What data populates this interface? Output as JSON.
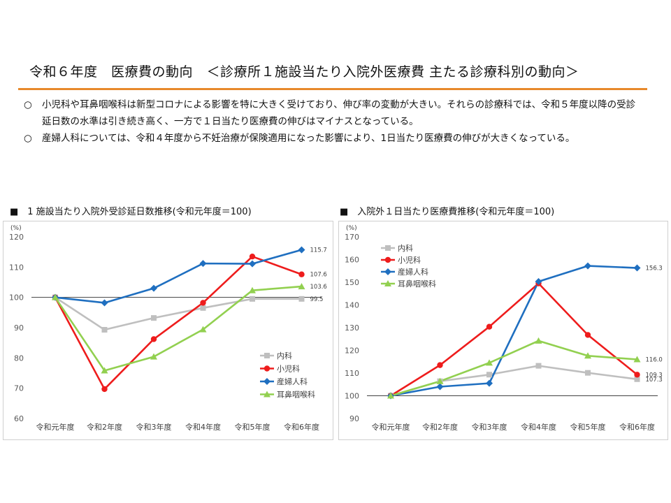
{
  "header": {
    "title": "令和６年度　医療費の動向　＜診療所１施設当たり入院外医療費 主たる診療科別の動向＞"
  },
  "bullets": [
    {
      "mark": "○",
      "text": "小児科や耳鼻咽喉科は新型コロナによる影響を特に大きく受けており、伸び率の変動が大きい。それらの診療科では、令和５年度以降の受診延日数の水準は引き続き高く、一方で１日当たり医療費の伸びはマイナスとなっている。"
    },
    {
      "mark": "○",
      "text": "産婦人科については、令和４年度から不妊治療が保険適用になった影響により、1日当たり医療費の伸びが大きくなっている。"
    }
  ],
  "chart_headings": [
    "■　1 施設当たり入院外受診延日数推移(令和元年度＝100)",
    "■　入院外１日当たり医療費推移(令和元年度＝100)"
  ],
  "chart_data": [
    {
      "type": "line",
      "unit_label": "(%)",
      "categories": [
        "令和元年度",
        "令和2年度",
        "令和3年度",
        "令和4年度",
        "令和5年度",
        "令和6年度"
      ],
      "ylim": [
        60,
        120
      ],
      "yticks": [
        60,
        70,
        80,
        90,
        100,
        110,
        120
      ],
      "reference_line": 100,
      "grid": false,
      "legend_position": "bottom-right",
      "series": [
        {
          "name": "内科",
          "color": "#bfbfbf",
          "marker": "square",
          "values": [
            100,
            89.3,
            93.2,
            96.5,
            99.5,
            99.5
          ],
          "end_label": "99.5"
        },
        {
          "name": "小児科",
          "color": "#ee1c1c",
          "marker": "circle",
          "values": [
            100,
            69.7,
            86.2,
            98.2,
            113.5,
            107.6
          ],
          "end_label": "107.6"
        },
        {
          "name": "産婦人科",
          "color": "#1f6fc0",
          "marker": "diamond",
          "values": [
            100,
            98.2,
            103,
            111.2,
            111.1,
            115.7
          ],
          "end_label": "115.7"
        },
        {
          "name": "耳鼻咽喉科",
          "color": "#92d050",
          "marker": "triangle",
          "values": [
            100,
            75.8,
            80.4,
            89.4,
            102.3,
            103.6
          ],
          "end_label": "103.6"
        }
      ]
    },
    {
      "type": "line",
      "unit_label": "(%)",
      "categories": [
        "令和元年度",
        "令和2年度",
        "令和3年度",
        "令和4年度",
        "令和5年度",
        "令和6年度"
      ],
      "ylim": [
        90,
        170
      ],
      "yticks": [
        90,
        100,
        110,
        120,
        130,
        140,
        150,
        160,
        170
      ],
      "reference_line": 100,
      "grid": false,
      "legend_position": "top-left",
      "series": [
        {
          "name": "内科",
          "color": "#bfbfbf",
          "marker": "square",
          "values": [
            100,
            106.4,
            109.3,
            113.2,
            110.1,
            107.3
          ],
          "end_label": "107.3"
        },
        {
          "name": "小児科",
          "color": "#ee1c1c",
          "marker": "circle",
          "values": [
            100,
            113.5,
            130.4,
            149.5,
            126.8,
            109.3
          ],
          "end_label": "109.3"
        },
        {
          "name": "産婦人科",
          "color": "#1f6fc0",
          "marker": "diamond",
          "values": [
            100,
            104,
            105.5,
            150.3,
            157.2,
            156.3
          ],
          "end_label": "156.3"
        },
        {
          "name": "耳鼻咽喉科",
          "color": "#92d050",
          "marker": "triangle",
          "values": [
            100,
            106.4,
            114.5,
            124.2,
            117.6,
            116.0
          ],
          "end_label": "116.0"
        }
      ]
    }
  ]
}
